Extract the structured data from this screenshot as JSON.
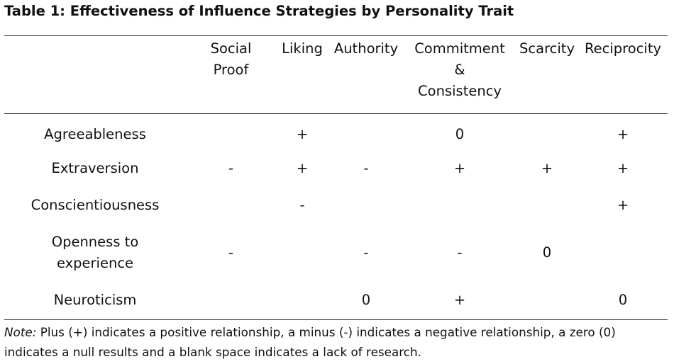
{
  "table": {
    "caption": "Table 1: Effectiveness of Influence Strategies by Personality Trait",
    "columns": [
      {
        "key": "social",
        "lines": [
          "Social",
          "Proof"
        ]
      },
      {
        "key": "liking",
        "lines": [
          "Liking"
        ]
      },
      {
        "key": "authority",
        "lines": [
          "Authority"
        ]
      },
      {
        "key": "commitment",
        "lines": [
          "Commitment",
          "&",
          "Consistency"
        ]
      },
      {
        "key": "scarcity",
        "lines": [
          "Scarcity"
        ]
      },
      {
        "key": "reciprocity",
        "lines": [
          "Reciprocity"
        ]
      }
    ],
    "rows": [
      {
        "trait_lines": [
          "Agreeableness"
        ],
        "cells": [
          "",
          "+",
          "",
          "0",
          "",
          "+"
        ]
      },
      {
        "trait_lines": [
          "Extraversion"
        ],
        "cells": [
          "-",
          "+",
          "-",
          "+",
          "+",
          "+"
        ]
      },
      {
        "trait_lines": [
          "Conscientiousness"
        ],
        "cells": [
          "",
          "-",
          "",
          "",
          "",
          "+"
        ]
      },
      {
        "trait_lines": [
          "Openness to",
          "experience"
        ],
        "cells": [
          "-",
          "",
          "-",
          "-",
          "0",
          ""
        ]
      },
      {
        "trait_lines": [
          "Neuroticism"
        ],
        "cells": [
          "",
          "",
          "0",
          "+",
          "",
          "0"
        ]
      }
    ]
  },
  "note": {
    "label": "Note:",
    "text": " Plus (+) indicates a positive relationship, a minus (-) indicates a negative relationship, a zero (0) indicates a null results and a blank space indicates a lack of research."
  }
}
